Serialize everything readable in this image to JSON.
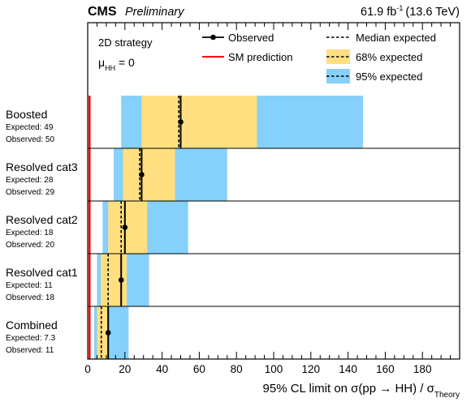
{
  "chart_data": {
    "type": "bar",
    "orientation": "horizontal",
    "experiment": "CMS",
    "status": "Preliminary",
    "lumi_value": "61.9 fb",
    "lumi_exp": "-1",
    "lumi_energy": "(13.6 TeV)",
    "strategy": "2D strategy",
    "mu_mu": "μ",
    "mu_sub": "HH",
    "mu_rest": " = 0",
    "xlabel_main": "95% CL limit on σ(pp → HH) / σ",
    "xlabel_sub": "Theory",
    "xlim": [
      0,
      200
    ],
    "xticks": [
      0,
      20,
      40,
      60,
      80,
      100,
      120,
      140,
      160,
      180
    ],
    "grid": false,
    "legend_position": "top",
    "sm_prediction": 1,
    "categories": [
      {
        "name": "Boosted",
        "expected_label": "Expected: 49",
        "observed_label": "Observed: 50",
        "median": 49,
        "observed": 50,
        "band68": [
          29,
          91
        ],
        "band95": [
          18,
          148
        ]
      },
      {
        "name": "Resolved cat3",
        "expected_label": "Expected: 28",
        "observed_label": "Observed: 29",
        "median": 28,
        "observed": 29,
        "band68": [
          19,
          47
        ],
        "band95": [
          14,
          75
        ]
      },
      {
        "name": "Resolved cat2",
        "expected_label": "Expected: 18",
        "observed_label": "Observed: 20",
        "median": 18,
        "observed": 20,
        "band68": [
          11,
          32
        ],
        "band95": [
          8,
          54
        ]
      },
      {
        "name": "Resolved cat1",
        "expected_label": "Expected: 11",
        "observed_label": "Observed: 18",
        "median": 11,
        "observed": 18,
        "band68": [
          7,
          21
        ],
        "band95": [
          5,
          33
        ]
      },
      {
        "name": "Combined",
        "expected_label": "Expected: 7.3",
        "observed_label": "Observed: 11",
        "median": 7.3,
        "observed": 11,
        "band68": [
          5,
          11
        ],
        "band95": [
          3.5,
          22
        ]
      }
    ],
    "legend": {
      "observed": "Observed",
      "sm": "SM prediction",
      "median": "Median expected",
      "band68": "68% expected",
      "band95": "95% expected"
    },
    "colors": {
      "band68": "#FFDF7F",
      "band95": "#85D1FB",
      "sm": "#FF0000",
      "line": "#000000"
    }
  }
}
